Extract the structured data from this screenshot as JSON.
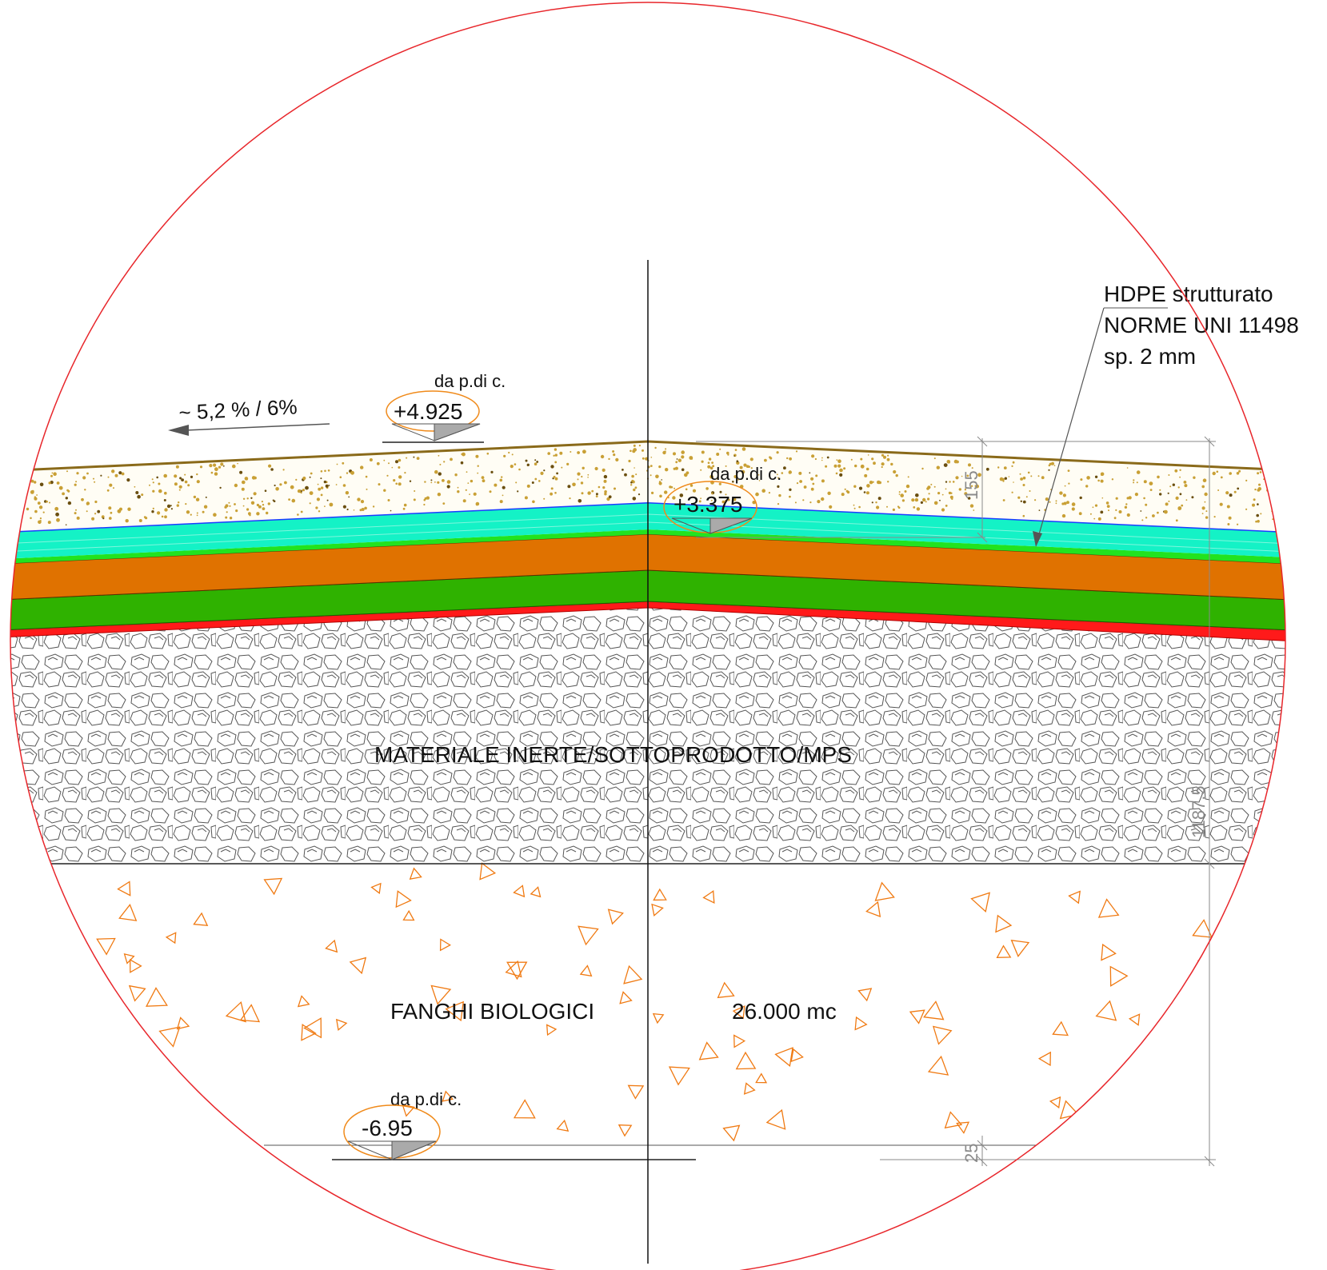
{
  "colors": {
    "boundary_circle": "#e8262b",
    "topsoil_line": "#8a6a1a",
    "topsoil_dots": "#c9a035",
    "drain_cyan": "#14f2c6",
    "hdpe_blue": "#1c3cff",
    "thin_green": "#22e31f",
    "orange_layer": "#e07200",
    "green_layer": "#2fb200",
    "red_layer": "#ff1a1a",
    "sludge_marks": "#f07a12",
    "dimension_lines": "#8a8a8a"
  },
  "slope_label": "~ 5,2 % / 6%",
  "elevations": [
    {
      "caption": "da p.di c.",
      "value": "+4.925"
    },
    {
      "caption": "da p.di c.",
      "value": "+3.375"
    },
    {
      "caption": "da p.di c.",
      "value": "-6.95"
    }
  ],
  "hdpe_note": {
    "line1": "HDPE strutturato",
    "line2": "NORME UNI 11498",
    "line3": "sp. 2 mm"
  },
  "materials": {
    "inert": "MATERIALE INERTE/SOTTOPRODOTTO/MPS",
    "sludge": "FANGHI BIOLOGICI",
    "sludge_volume": "26.000 mc"
  },
  "dimensions": {
    "topsoil_thickness": "155",
    "total_height": "1187.5",
    "base_thickness": "25"
  },
  "icons": {
    "ground": "ground-hatch-icon",
    "elevation": "elevation-marker-icon",
    "slope": "slope-arrow-icon"
  }
}
